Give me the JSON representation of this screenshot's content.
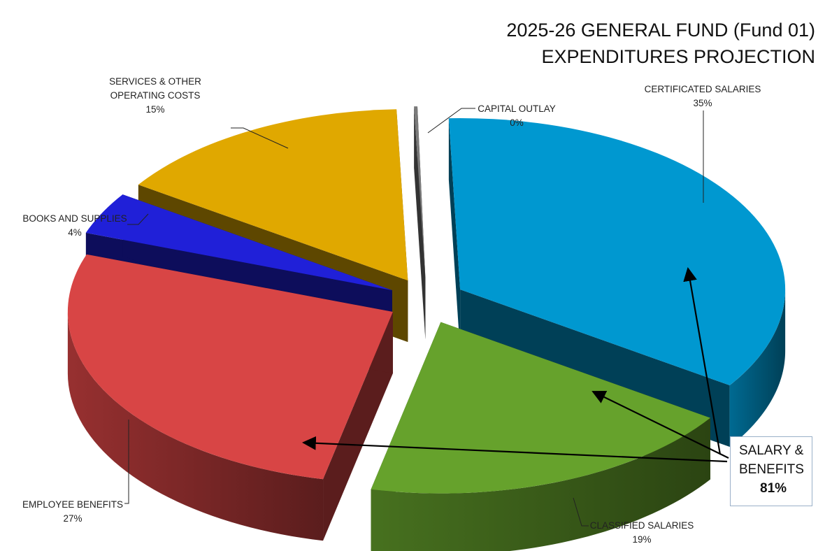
{
  "title_line1": "2025-26 GENERAL FUND (Fund 01)",
  "title_line2": "EXPENDITURES PROJECTION",
  "chart_data": {
    "type": "pie",
    "title": "2025-26 GENERAL FUND (Fund 01) EXPENDITURES PROJECTION",
    "style": "3d-exploded",
    "slices": [
      {
        "key": "certificated",
        "label": "CERTIFICATED SALARIES",
        "pct_label": "35%",
        "value": 35,
        "color": "#0098d0"
      },
      {
        "key": "classified",
        "label": "CLASSIFIED SALARIES",
        "pct_label": "19%",
        "value": 19,
        "color": "#66a22c"
      },
      {
        "key": "benefits",
        "label": "EMPLOYEE BENEFITS",
        "pct_label": "27%",
        "value": 27,
        "color": "#d84545"
      },
      {
        "key": "books",
        "label": "BOOKS AND SUPPLIES",
        "pct_label": "4%",
        "value": 4,
        "color": "#2020d8"
      },
      {
        "key": "services",
        "label": "SERVICES & OTHER OPERATING COSTS",
        "pct_label": "15%",
        "value": 15,
        "color": "#e0a800"
      },
      {
        "key": "capital",
        "label": "CAPITAL OUTLAY",
        "pct_label": "0%",
        "value": 0,
        "color": "#7a7a7a"
      }
    ],
    "annotation": {
      "line1": "SALARY &",
      "line2": "BENEFITS",
      "value": "81%"
    }
  }
}
